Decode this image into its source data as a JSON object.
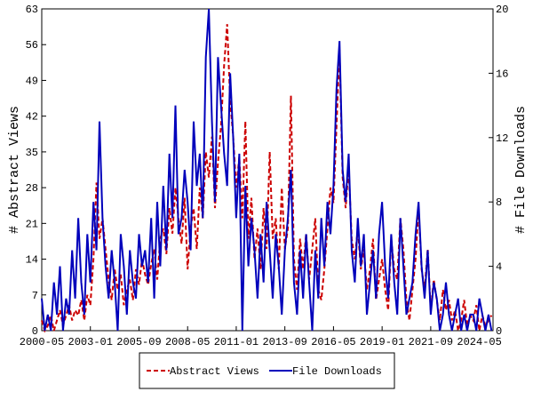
{
  "chart_data": {
    "type": "line",
    "y_label": "# Abstract Views",
    "y2_label": "# File Downloads",
    "x": [
      "2000-05",
      "2000-07",
      "2000-09",
      "2000-11",
      "2001-01",
      "2001-03",
      "2001-05",
      "2001-07",
      "2001-09",
      "2001-11",
      "2002-01",
      "2002-03",
      "2002-05",
      "2002-07",
      "2002-09",
      "2002-11",
      "2003-01",
      "2003-03",
      "2003-05",
      "2003-07",
      "2003-09",
      "2003-11",
      "2004-01",
      "2004-03",
      "2004-05",
      "2004-07",
      "2004-09",
      "2004-11",
      "2005-01",
      "2005-03",
      "2005-05",
      "2005-07",
      "2005-09",
      "2005-11",
      "2006-01",
      "2006-03",
      "2006-05",
      "2006-07",
      "2006-09",
      "2006-11",
      "2007-01",
      "2007-03",
      "2007-05",
      "2007-07",
      "2007-09",
      "2007-11",
      "2008-01",
      "2008-03",
      "2008-05",
      "2008-07",
      "2008-09",
      "2008-11",
      "2009-01",
      "2009-03",
      "2009-05",
      "2009-07",
      "2009-09",
      "2009-11",
      "2010-01",
      "2010-03",
      "2010-05",
      "2010-07",
      "2010-09",
      "2010-11",
      "2011-01",
      "2011-03",
      "2011-05",
      "2011-07",
      "2011-09",
      "2011-11",
      "2012-01",
      "2012-03",
      "2012-05",
      "2012-07",
      "2012-09",
      "2012-11",
      "2013-01",
      "2013-03",
      "2013-05",
      "2013-07",
      "2013-09",
      "2013-11",
      "2014-01",
      "2014-03",
      "2014-05",
      "2014-07",
      "2014-09",
      "2014-11",
      "2015-01",
      "2015-03",
      "2015-05",
      "2015-07",
      "2015-09",
      "2015-11",
      "2016-01",
      "2016-03",
      "2016-05",
      "2016-07",
      "2016-09",
      "2016-11",
      "2017-01",
      "2017-03",
      "2017-05",
      "2017-07",
      "2017-09",
      "2017-11",
      "2018-01",
      "2018-03",
      "2018-05",
      "2018-07",
      "2018-09",
      "2018-11",
      "2019-01",
      "2019-03",
      "2019-05",
      "2019-07",
      "2019-09",
      "2019-11",
      "2020-01",
      "2020-03",
      "2020-05",
      "2020-07",
      "2020-09",
      "2020-11",
      "2021-01",
      "2021-03",
      "2021-05",
      "2021-07",
      "2021-09",
      "2021-11",
      "2022-01",
      "2022-03",
      "2022-05",
      "2022-07",
      "2022-09",
      "2022-11",
      "2023-01",
      "2023-03",
      "2023-05",
      "2023-07",
      "2023-09",
      "2023-11",
      "2024-01",
      "2024-03",
      "2024-05",
      "2024-07",
      "2024-09",
      "2024-11",
      "2025-01"
    ],
    "series": [
      {
        "name": "Abstract Views",
        "color": "#cc0000",
        "dashed": true,
        "values": [
          2,
          0,
          1,
          3,
          0,
          2,
          4,
          1,
          3,
          5,
          2,
          4,
          3,
          6,
          2,
          7,
          5,
          14,
          29,
          18,
          22,
          16,
          10,
          6,
          12,
          8,
          11,
          5,
          8,
          10,
          6,
          12,
          9,
          14,
          11,
          9,
          13,
          16,
          10,
          18,
          20,
          15,
          24,
          19,
          28,
          22,
          17,
          26,
          12,
          20,
          24,
          16,
          28,
          22,
          35,
          30,
          38,
          24,
          33,
          40,
          52,
          60,
          45,
          38,
          28,
          34,
          22,
          41,
          18,
          26,
          14,
          20,
          12,
          24,
          16,
          35,
          18,
          22,
          12,
          28,
          16,
          20,
          46,
          14,
          8,
          18,
          12,
          19,
          10,
          16,
          22,
          8,
          6,
          12,
          20,
          28,
          25,
          40,
          55,
          30,
          24,
          32,
          18,
          14,
          20,
          12,
          16,
          8,
          12,
          18,
          6,
          10,
          14,
          8,
          4,
          18,
          12,
          10,
          22,
          16,
          6,
          2,
          8,
          14,
          24,
          12,
          8,
          16,
          4,
          10,
          6,
          2,
          8,
          4,
          6,
          2,
          4,
          0,
          2,
          6,
          1,
          3,
          2,
          5,
          0,
          3,
          1,
          2,
          3
        ]
      },
      {
        "name": "File Downloads",
        "color": "#0000bb",
        "dashed": false,
        "axis": "y2",
        "values": [
          2,
          0,
          1,
          0,
          3,
          1,
          4,
          0,
          2,
          1,
          5,
          2,
          7,
          3,
          1,
          6,
          3,
          8,
          5,
          13,
          7,
          4,
          2,
          5,
          3,
          0,
          6,
          4,
          1,
          5,
          3,
          2,
          6,
          4,
          5,
          3,
          7,
          2,
          8,
          4,
          9,
          5,
          11,
          7,
          14,
          6,
          7,
          10,
          8,
          5,
          13,
          9,
          11,
          7,
          17,
          20,
          13,
          8,
          17,
          14,
          11,
          9,
          16,
          12,
          7,
          11,
          0,
          9,
          4,
          7,
          5,
          2,
          6,
          3,
          8,
          5,
          2,
          6,
          4,
          1,
          5,
          7,
          10,
          3,
          1,
          5,
          2,
          6,
          3,
          0,
          5,
          2,
          7,
          4,
          8,
          6,
          9,
          15,
          18,
          10,
          8,
          11,
          5,
          3,
          7,
          4,
          6,
          1,
          3,
          5,
          2,
          6,
          8,
          4,
          2,
          6,
          3,
          1,
          7,
          4,
          1,
          2,
          3,
          6,
          8,
          4,
          2,
          5,
          1,
          3,
          2,
          0,
          1,
          3,
          1,
          0,
          1,
          2,
          0,
          1,
          0,
          1,
          1,
          0,
          2,
          1,
          0,
          1,
          0
        ]
      }
    ],
    "xlim": [
      "2000-05",
      "2025-02"
    ],
    "xticks": [
      "2000-05",
      "2003-01",
      "2005-09",
      "2008-05",
      "2011-01",
      "2013-09",
      "2016-05",
      "2019-01",
      "2021-09",
      "2024-05"
    ],
    "ylim": [
      0,
      63
    ],
    "yticks": [
      0,
      7,
      14,
      21,
      28,
      35,
      42,
      49,
      56,
      63
    ],
    "y2lim": [
      0,
      20
    ],
    "y2ticks": [
      0,
      4,
      8,
      12,
      16,
      20
    ],
    "legend": "bottom"
  }
}
